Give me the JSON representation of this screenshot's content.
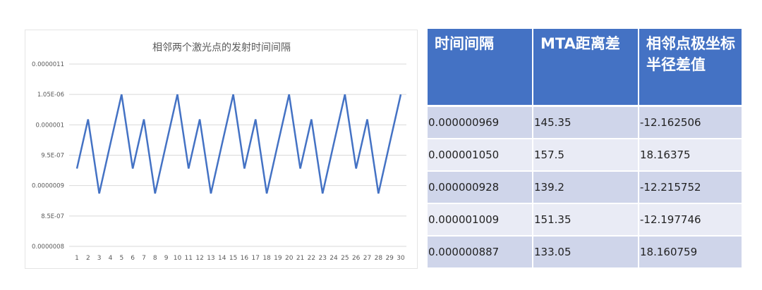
{
  "chart_data": {
    "type": "line",
    "title": "相邻两个激光点的发射时间间隔",
    "x": [
      1,
      2,
      3,
      4,
      5,
      6,
      7,
      8,
      9,
      10,
      11,
      12,
      13,
      14,
      15,
      16,
      17,
      18,
      19,
      20,
      21,
      22,
      23,
      24,
      25,
      26,
      27,
      28,
      29,
      30
    ],
    "values": [
      9.28e-07,
      1.009e-06,
      8.87e-07,
      9.69e-07,
      1.05e-06,
      9.28e-07,
      1.009e-06,
      8.87e-07,
      9.69e-07,
      1.05e-06,
      9.28e-07,
      1.009e-06,
      8.87e-07,
      9.69e-07,
      1.05e-06,
      9.28e-07,
      1.009e-06,
      8.87e-07,
      9.69e-07,
      1.05e-06,
      9.28e-07,
      1.009e-06,
      8.87e-07,
      9.69e-07,
      1.05e-06,
      9.28e-07,
      1.009e-06,
      8.87e-07,
      9.69e-07,
      1.05e-06
    ],
    "ylim": [
      8e-07,
      1.1e-06
    ],
    "yticks": [
      8e-07,
      8.5e-07,
      9e-07,
      9.5e-07,
      1e-06,
      1.05e-06,
      1.1e-06
    ],
    "ytick_labels": [
      "0.0000008",
      "8.5E-07",
      "0.0000009",
      "9.5E-07",
      "0.000001",
      "1.05E-06",
      "0.0000011"
    ],
    "grid": true,
    "line_color": "#4472C4"
  },
  "table": {
    "headers": [
      "时间间隔",
      "MTA距离差",
      "相邻点极坐标半径差值"
    ],
    "rows": [
      [
        "0.000000969",
        "145.35",
        "-12.162506"
      ],
      [
        "0.000001050",
        "157.5",
        "18.16375"
      ],
      [
        "0.000000928",
        "139.2",
        "-12.215752"
      ],
      [
        "0.000001009",
        "151.35",
        "-12.197746"
      ],
      [
        "0.000000887",
        "133.05",
        "18.160759"
      ]
    ],
    "header_color": "#4472C4"
  }
}
